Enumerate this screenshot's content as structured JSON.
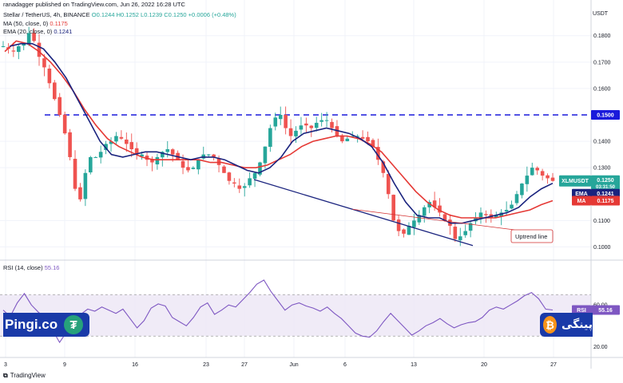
{
  "header": {
    "published": "ranadagger published on TradingView.com, Jun 26, 2022 16:28 UTC",
    "symbol_prefix": "Stellar / TetherUS, 4h, BINANCE",
    "ohlc": "O0.1244 H0.1252 L0.1239 C0.1250 +0.0006 (+0.48%)",
    "ma_label": "MA (50, close, 0)",
    "ma_value": "0.1175",
    "ema_label": "EMA (20, close, 0)",
    "ema_value": "0.1241"
  },
  "rsi_header": {
    "label": "RSI (14, close)",
    "value": "55.16"
  },
  "watermark": {
    "left_text": "Pingi.co",
    "left_icon": "tether-icon",
    "right_text": "پینگی",
    "right_icon": "bitcoin-icon"
  },
  "footer": {
    "logo_text": "TradingView"
  },
  "colors": {
    "up": "#26a69a",
    "down": "#ef5350",
    "ema": "#1a237e",
    "ma": "#e53935",
    "resistance": "#1a1adb",
    "trendline": "#1a237e",
    "rsi": "#7e57c2",
    "rsi_band": "#ede7f6",
    "annotation": "#d32f2f"
  },
  "chart_data": [
    {
      "type": "candlestick",
      "title": "Stellar / TetherUS, 4h, BINANCE",
      "y_axis_unit": "USDT",
      "yticks": [
        "0.1800",
        "0.1700",
        "0.1600",
        "0.1400",
        "0.1300",
        "0.1100",
        "0.1000"
      ],
      "ylim": [
        0.0962,
        0.1905
      ],
      "xticks": [
        "3",
        "9",
        "16",
        "23",
        "27",
        "Jun",
        "6",
        "13",
        "20",
        "27"
      ],
      "grid": true,
      "ohlc_path": [
        0.176,
        0.175,
        0.174,
        0.176,
        0.177,
        0.181,
        0.178,
        0.172,
        0.168,
        0.162,
        0.156,
        0.15,
        0.143,
        0.134,
        0.122,
        0.118,
        0.128,
        0.134,
        0.134,
        0.136,
        0.139,
        0.14,
        0.142,
        0.141,
        0.139,
        0.137,
        0.135,
        0.135,
        0.133,
        0.132,
        0.134,
        0.136,
        0.137,
        0.135,
        0.133,
        0.13,
        0.129,
        0.13,
        0.133,
        0.135,
        0.135,
        0.134,
        0.131,
        0.128,
        0.125,
        0.124,
        0.122,
        0.123,
        0.126,
        0.128,
        0.132,
        0.138,
        0.145,
        0.149,
        0.15,
        0.145,
        0.142,
        0.144,
        0.146,
        0.146,
        0.145,
        0.147,
        0.148,
        0.148,
        0.145,
        0.142,
        0.14,
        0.141,
        0.142,
        0.142,
        0.141,
        0.14,
        0.138,
        0.133,
        0.128,
        0.12,
        0.11,
        0.106,
        0.105,
        0.108,
        0.11,
        0.112,
        0.115,
        0.117,
        0.115,
        0.113,
        0.11,
        0.108,
        0.103,
        0.104,
        0.106,
        0.109,
        0.111,
        0.113,
        0.112,
        0.111,
        0.112,
        0.113,
        0.114,
        0.116,
        0.12,
        0.124,
        0.127,
        0.13,
        0.129,
        0.127,
        0.126,
        0.125
      ],
      "resistance_level": 0.15,
      "price_labels": [
        {
          "label": "",
          "value": "0.1500"
        },
        {
          "label": "XLMUSDT",
          "value": "0.1250",
          "sub": "03:31:50"
        },
        {
          "label": "EMA",
          "value": "0.1241"
        },
        {
          "label": "MA",
          "value": "0.1175"
        }
      ],
      "series": [
        {
          "name": "EMA (20, close, 0)",
          "values": [
            0.176,
            0.177,
            0.177,
            0.175,
            0.17,
            0.164,
            0.156,
            0.148,
            0.14,
            0.135,
            0.134,
            0.135,
            0.136,
            0.136,
            0.135,
            0.134,
            0.133,
            0.134,
            0.134,
            0.133,
            0.131,
            0.129,
            0.128,
            0.13,
            0.134,
            0.14,
            0.143,
            0.144,
            0.145,
            0.144,
            0.143,
            0.141,
            0.138,
            0.132,
            0.124,
            0.117,
            0.112,
            0.111,
            0.111,
            0.109,
            0.109,
            0.11,
            0.111,
            0.112,
            0.113,
            0.115,
            0.119,
            0.122,
            0.1241
          ]
        },
        {
          "name": "MA (50, close, 0)",
          "values": [
            0.174,
            0.178,
            0.177,
            0.174,
            0.17,
            0.165,
            0.159,
            0.152,
            0.146,
            0.141,
            0.138,
            0.136,
            0.134,
            0.133,
            0.133,
            0.133,
            0.133,
            0.133,
            0.132,
            0.132,
            0.131,
            0.13,
            0.13,
            0.131,
            0.133,
            0.135,
            0.138,
            0.14,
            0.141,
            0.142,
            0.142,
            0.141,
            0.139,
            0.136,
            0.131,
            0.126,
            0.121,
            0.117,
            0.114,
            0.112,
            0.111,
            0.111,
            0.111,
            0.111,
            0.112,
            0.113,
            0.114,
            0.116,
            0.1175
          ]
        }
      ],
      "annotations": [
        {
          "text": "Uptrend line",
          "type": "trendline",
          "from": [
            20,
            0.1005
          ],
          "to": [
            27,
            0.1255
          ]
        }
      ]
    },
    {
      "type": "line",
      "title": "RSI (14, close)",
      "yticks": [
        "60.00",
        "20.00"
      ],
      "ylim": [
        11,
        94
      ],
      "band": [
        30,
        70
      ],
      "xticks": [
        "3",
        "9",
        "16",
        "23",
        "27",
        "Jun",
        "6",
        "13",
        "20",
        "27"
      ],
      "series": [
        {
          "name": "RSI (14, close)",
          "values": [
            55,
            49,
            62,
            71,
            60,
            53,
            48,
            36,
            24,
            34,
            41,
            51,
            56,
            54,
            58,
            55,
            52,
            56,
            47,
            38,
            45,
            57,
            61,
            59,
            48,
            44,
            40,
            48,
            58,
            62,
            51,
            55,
            60,
            58,
            65,
            72,
            80,
            84,
            73,
            64,
            55,
            60,
            62,
            59,
            57,
            54,
            58,
            52,
            47,
            40,
            33,
            30,
            29,
            35,
            44,
            52,
            45,
            38,
            31,
            35,
            40,
            43,
            47,
            42,
            38,
            41,
            43,
            44,
            48,
            55,
            58,
            56,
            60,
            64,
            69,
            72,
            66,
            56,
            55.16
          ]
        }
      ]
    }
  ]
}
